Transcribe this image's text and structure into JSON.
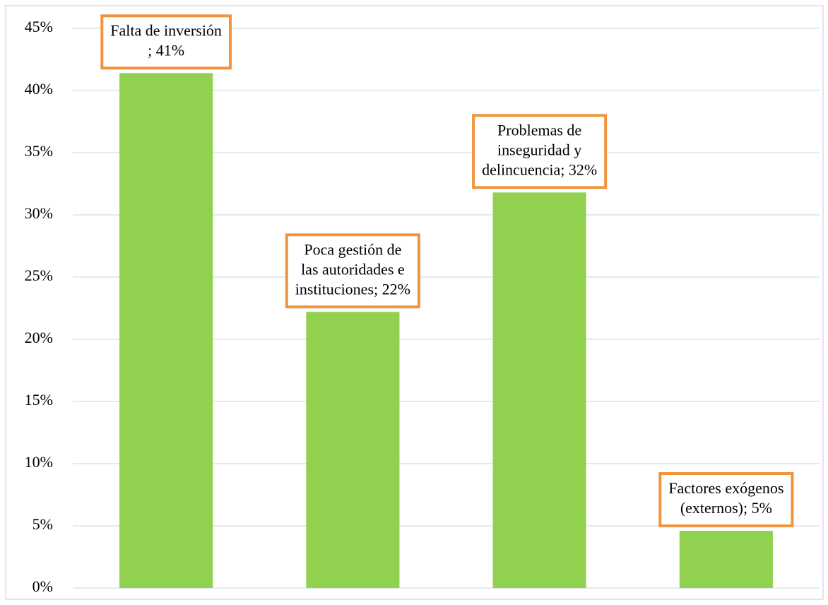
{
  "chart_data": {
    "type": "bar",
    "categories": [
      null,
      null,
      null,
      null
    ],
    "values": [
      41.4,
      22.2,
      31.8,
      4.6
    ],
    "value_labels": [
      [
        "Falta de inversión",
        "; 41%"
      ],
      [
        "Poca gestión de",
        "las autoridades e",
        "instituciones; 22%"
      ],
      [
        "Problemas de",
        "inseguridad y",
        "delincuencia; 32%"
      ],
      [
        "Factores exógenos",
        "(externos); 5%"
      ]
    ],
    "color": "#92d050",
    "label_border_color": "#f0953e",
    "ylim": [
      0,
      45
    ],
    "yticks": [
      {
        "value": 0,
        "label": "0%"
      },
      {
        "value": 5,
        "label": "5%"
      },
      {
        "value": 10,
        "label": "10%"
      },
      {
        "value": 15,
        "label": "15%"
      },
      {
        "value": 20,
        "label": "20%"
      },
      {
        "value": 25,
        "label": "25%"
      },
      {
        "value": 30,
        "label": "30%"
      },
      {
        "value": 35,
        "label": "35%"
      },
      {
        "value": 40,
        "label": "40%"
      },
      {
        "value": 45,
        "label": "45%"
      }
    ],
    "grid": true
  }
}
